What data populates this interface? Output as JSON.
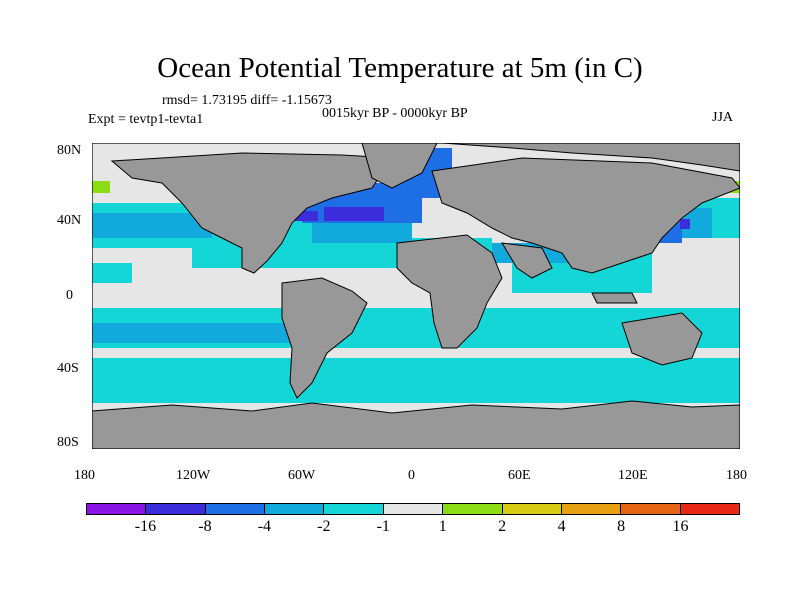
{
  "title": "Ocean Potential Temperature at 5m (in C)",
  "stats": "rmsd= 1.73195 diff= -1.15673",
  "period": "0015kyr BP - 0000kyr BP",
  "experiment": "Expt = tevtp1-tevta1",
  "season": "JJA",
  "axes": {
    "lat_labels": [
      "80N",
      "40N",
      "0",
      "40S",
      "80S"
    ],
    "lon_labels": [
      "180",
      "120W",
      "60W",
      "0",
      "60E",
      "120E",
      "180"
    ]
  },
  "colorbar": {
    "colors": [
      "#8a14e6",
      "#3c2ddc",
      "#1e6ee6",
      "#12aadc",
      "#14d6d6",
      "#e6e6e6",
      "#8cdc14",
      "#d6cc14",
      "#e6a014",
      "#e66414",
      "#e62814"
    ],
    "labels": [
      "-16",
      "-8",
      "-4",
      "-2",
      "-1",
      "1",
      "2",
      "4",
      "8",
      "16"
    ]
  },
  "map_colors": {
    "land": "#989898",
    "ocean_neutral": "#e6e6e6",
    "cool_1": "#14d6d6",
    "cool_2": "#12aadc",
    "cool_4": "#1e6ee6",
    "cool_8": "#3c2ddc",
    "warm_2": "#8cdc14"
  }
}
